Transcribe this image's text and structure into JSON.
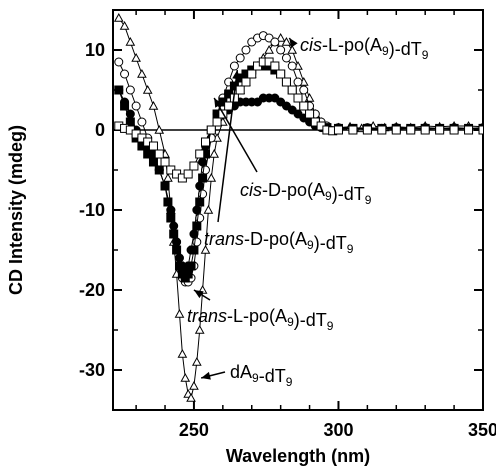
{
  "chart_data": {
    "type": "line",
    "xlabel": "Wavelength (nm)",
    "ylabel": "CD Intensity (mdeg)",
    "xlim": [
      222,
      350
    ],
    "ylim": [
      -35,
      15
    ],
    "x_ticks": [
      250,
      300,
      350
    ],
    "y_ticks": [
      10,
      0,
      -10,
      -20,
      -30
    ],
    "zero_line": true,
    "series": [
      {
        "name": "dA9-dT9",
        "marker": "open-triangle",
        "points": [
          [
            224,
            14
          ],
          [
            226,
            13
          ],
          [
            228,
            11
          ],
          [
            230,
            9
          ],
          [
            232,
            7
          ],
          [
            234,
            5
          ],
          [
            236,
            3
          ],
          [
            238,
            0
          ],
          [
            240,
            -3
          ],
          [
            241,
            -6
          ],
          [
            242,
            -10
          ],
          [
            243,
            -14
          ],
          [
            244,
            -18
          ],
          [
            245,
            -23
          ],
          [
            246,
            -28
          ],
          [
            247,
            -31
          ],
          [
            248,
            -33
          ],
          [
            249,
            -33.5
          ],
          [
            250,
            -32
          ],
          [
            251,
            -29
          ],
          [
            252,
            -25
          ],
          [
            253,
            -20
          ],
          [
            254,
            -15
          ],
          [
            255,
            -10
          ],
          [
            256,
            -6
          ],
          [
            257,
            -3
          ],
          [
            258,
            -1
          ],
          [
            260,
            1
          ],
          [
            262,
            3
          ],
          [
            264,
            4
          ],
          [
            266,
            5
          ],
          [
            268,
            6
          ],
          [
            270,
            7
          ],
          [
            272,
            8
          ],
          [
            274,
            9
          ],
          [
            276,
            10
          ],
          [
            278,
            11
          ],
          [
            280,
            11.5
          ],
          [
            282,
            11
          ],
          [
            284,
            10
          ],
          [
            286,
            8
          ],
          [
            288,
            6
          ],
          [
            290,
            4
          ],
          [
            292,
            2
          ],
          [
            294,
            1
          ],
          [
            296,
            0.5
          ],
          [
            300,
            0.3
          ],
          [
            304,
            0.4
          ],
          [
            308,
            0.2
          ],
          [
            312,
            0.5
          ],
          [
            316,
            0.3
          ],
          [
            320,
            0.4
          ],
          [
            325,
            0.3
          ],
          [
            330,
            0.5
          ],
          [
            335,
            0.4
          ],
          [
            340,
            0.5
          ],
          [
            345,
            0.5
          ],
          [
            350,
            0.4
          ]
        ]
      },
      {
        "name": "cis-L-po(A9)-dT9",
        "marker": "open-circle",
        "points": [
          [
            224,
            8.5
          ],
          [
            226,
            7
          ],
          [
            228,
            5
          ],
          [
            230,
            3
          ],
          [
            232,
            1
          ],
          [
            234,
            -1
          ],
          [
            236,
            -3
          ],
          [
            238,
            -5
          ],
          [
            240,
            -7
          ],
          [
            242,
            -10
          ],
          [
            244,
            -14
          ],
          [
            245,
            -17
          ],
          [
            246,
            -18.5
          ],
          [
            247,
            -19
          ],
          [
            248,
            -19
          ],
          [
            249,
            -18.5
          ],
          [
            250,
            -17
          ],
          [
            251,
            -14
          ],
          [
            252,
            -11
          ],
          [
            253,
            -8
          ],
          [
            254,
            -5
          ],
          [
            256,
            -1
          ],
          [
            258,
            2
          ],
          [
            260,
            4
          ],
          [
            262,
            6
          ],
          [
            264,
            8
          ],
          [
            266,
            9
          ],
          [
            268,
            10
          ],
          [
            270,
            11
          ],
          [
            272,
            11.5
          ],
          [
            274,
            11.8
          ],
          [
            276,
            11.5
          ],
          [
            278,
            11
          ],
          [
            280,
            10
          ],
          [
            282,
            9
          ],
          [
            284,
            8
          ],
          [
            286,
            6
          ],
          [
            288,
            5
          ],
          [
            290,
            3
          ],
          [
            292,
            2
          ],
          [
            294,
            1
          ],
          [
            296,
            0.5
          ],
          [
            300,
            0.3
          ],
          [
            305,
            0.2
          ],
          [
            310,
            0.3
          ],
          [
            315,
            0.2
          ],
          [
            320,
            0.3
          ],
          [
            325,
            0.2
          ],
          [
            330,
            0.3
          ],
          [
            335,
            0.2
          ],
          [
            340,
            0.3
          ],
          [
            345,
            0.2
          ],
          [
            350,
            0.3
          ]
        ]
      },
      {
        "name": "trans-D-po(A9)-dT9",
        "marker": "filled-square",
        "points": [
          [
            224,
            5
          ],
          [
            226,
            3
          ],
          [
            228,
            1
          ],
          [
            230,
            -1
          ],
          [
            232,
            -2
          ],
          [
            234,
            -3
          ],
          [
            236,
            -4
          ],
          [
            238,
            -5
          ],
          [
            240,
            -7
          ],
          [
            241,
            -9
          ],
          [
            242,
            -11
          ],
          [
            243,
            -13
          ],
          [
            244,
            -15
          ],
          [
            245,
            -17
          ],
          [
            246,
            -18
          ],
          [
            247,
            -18.5
          ],
          [
            248,
            -18
          ],
          [
            249,
            -17
          ],
          [
            250,
            -15
          ],
          [
            251,
            -12
          ],
          [
            252,
            -9
          ],
          [
            253,
            -6
          ],
          [
            254,
            -3
          ],
          [
            256,
            0
          ],
          [
            258,
            2
          ],
          [
            260,
            3.5
          ],
          [
            262,
            4.5
          ],
          [
            264,
            5.5
          ],
          [
            266,
            6.5
          ],
          [
            268,
            7
          ],
          [
            270,
            7.5
          ],
          [
            272,
            8
          ],
          [
            274,
            8
          ],
          [
            276,
            8
          ],
          [
            278,
            7.5
          ],
          [
            280,
            7
          ],
          [
            282,
            6
          ],
          [
            284,
            5
          ],
          [
            286,
            4
          ],
          [
            288,
            3
          ],
          [
            290,
            2
          ],
          [
            292,
            1
          ],
          [
            294,
            0.5
          ],
          [
            296,
            0.3
          ],
          [
            300,
            0.2
          ],
          [
            305,
            0.2
          ],
          [
            310,
            0.2
          ],
          [
            315,
            0.2
          ],
          [
            320,
            0.2
          ],
          [
            325,
            0.2
          ],
          [
            330,
            0.2
          ],
          [
            335,
            0.2
          ],
          [
            340,
            0.2
          ],
          [
            345,
            0.2
          ],
          [
            350,
            0.2
          ]
        ]
      },
      {
        "name": "cis-D-po(A9)-dT9",
        "marker": "filled-circle",
        "points": [
          [
            224,
            5
          ],
          [
            226,
            3.5
          ],
          [
            228,
            2
          ],
          [
            230,
            0
          ],
          [
            232,
            -1
          ],
          [
            234,
            -2
          ],
          [
            236,
            -3
          ],
          [
            238,
            -5
          ],
          [
            240,
            -7
          ],
          [
            242,
            -10
          ],
          [
            243,
            -12
          ],
          [
            244,
            -14
          ],
          [
            245,
            -16
          ],
          [
            246,
            -17
          ],
          [
            247,
            -17.5
          ],
          [
            248,
            -17
          ],
          [
            249,
            -15
          ],
          [
            250,
            -13
          ],
          [
            251,
            -10
          ],
          [
            252,
            -7
          ],
          [
            253,
            -4
          ],
          [
            254,
            -2
          ],
          [
            256,
            0
          ],
          [
            258,
            1
          ],
          [
            260,
            2
          ],
          [
            262,
            2.5
          ],
          [
            264,
            3
          ],
          [
            266,
            3.5
          ],
          [
            268,
            3.5
          ],
          [
            270,
            3.5
          ],
          [
            272,
            3.5
          ],
          [
            274,
            4
          ],
          [
            276,
            4
          ],
          [
            278,
            4
          ],
          [
            280,
            3.5
          ],
          [
            282,
            3
          ],
          [
            284,
            2.5
          ],
          [
            286,
            2
          ],
          [
            288,
            1.5
          ],
          [
            290,
            1
          ],
          [
            292,
            0.5
          ],
          [
            294,
            0.3
          ],
          [
            296,
            0.2
          ],
          [
            300,
            0.1
          ],
          [
            305,
            0.2
          ],
          [
            310,
            0.1
          ],
          [
            315,
            0.2
          ],
          [
            320,
            0.1
          ],
          [
            325,
            0.2
          ],
          [
            330,
            0.1
          ],
          [
            335,
            0.2
          ],
          [
            340,
            0.1
          ],
          [
            345,
            0.2
          ],
          [
            350,
            0.1
          ]
        ]
      },
      {
        "name": "trans-L-po(A9)-dT9",
        "marker": "open-square",
        "points": [
          [
            224,
            0.5
          ],
          [
            226,
            0.2
          ],
          [
            228,
            0
          ],
          [
            230,
            -0.5
          ],
          [
            232,
            -1
          ],
          [
            234,
            -1.5
          ],
          [
            236,
            -2
          ],
          [
            238,
            -3
          ],
          [
            240,
            -4
          ],
          [
            242,
            -5
          ],
          [
            244,
            -5.5
          ],
          [
            246,
            -6
          ],
          [
            248,
            -5.5
          ],
          [
            250,
            -4.5
          ],
          [
            252,
            -3
          ],
          [
            254,
            -1.5
          ],
          [
            256,
            0
          ],
          [
            258,
            1
          ],
          [
            260,
            2
          ],
          [
            262,
            3
          ],
          [
            264,
            4
          ],
          [
            266,
            5
          ],
          [
            268,
            6
          ],
          [
            270,
            7
          ],
          [
            272,
            8
          ],
          [
            274,
            8.5
          ],
          [
            276,
            8.5
          ],
          [
            278,
            8
          ],
          [
            280,
            7
          ],
          [
            282,
            6
          ],
          [
            284,
            5
          ],
          [
            286,
            4
          ],
          [
            288,
            3
          ],
          [
            290,
            2
          ],
          [
            292,
            1
          ],
          [
            294,
            0.5
          ],
          [
            296,
            0
          ],
          [
            298,
            -0.1
          ],
          [
            300,
            0
          ],
          [
            305,
            0
          ],
          [
            310,
            0
          ],
          [
            315,
            0
          ],
          [
            320,
            0
          ],
          [
            325,
            0
          ],
          [
            330,
            0
          ],
          [
            335,
            0
          ],
          [
            340,
            0
          ],
          [
            345,
            0
          ],
          [
            350,
            0
          ]
        ]
      }
    ],
    "annotations": [
      {
        "label_parts": [
          {
            "t": "cis",
            "i": true
          },
          {
            "t": "-L-po(A"
          },
          {
            "t": "9",
            "s": true
          },
          {
            "t": ")-dT"
          },
          {
            "t": "9",
            "s": true
          }
        ],
        "point": [
          279,
          11.5
        ]
      },
      {
        "label_parts": [
          {
            "t": "cis",
            "i": true
          },
          {
            "t": "-D-po(A"
          },
          {
            "t": "9",
            "s": true
          },
          {
            "t": ")-dT"
          },
          {
            "t": "9",
            "s": true
          }
        ],
        "point": [
          257,
          4
        ]
      },
      {
        "label_parts": [
          {
            "t": "trans",
            "i": true
          },
          {
            "t": "-D-po(A"
          },
          {
            "t": "9",
            "s": true
          },
          {
            "t": ")-dT"
          },
          {
            "t": "9",
            "s": true
          }
        ],
        "point": [
          265,
          7.5
        ]
      },
      {
        "label_parts": [
          {
            "t": "trans",
            "i": true
          },
          {
            "t": "-L-po(A"
          },
          {
            "t": "9",
            "s": true
          },
          {
            "t": ")-dT"
          },
          {
            "t": "9",
            "s": true
          }
        ],
        "point": [
          249,
          -19.5
        ]
      },
      {
        "label_parts": [
          {
            "t": "dA"
          },
          {
            "t": "9",
            "s": true
          },
          {
            "t": "-dT"
          },
          {
            "t": "9",
            "s": true
          }
        ],
        "point": [
          251,
          -31
        ]
      }
    ]
  }
}
